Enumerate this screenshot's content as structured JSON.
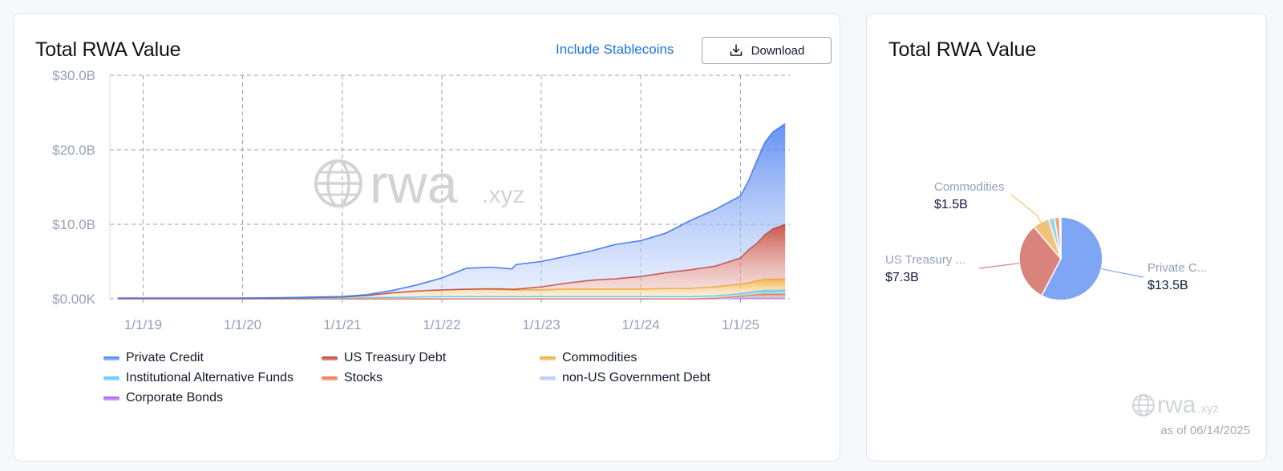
{
  "left_card": {
    "title": "Total RWA Value",
    "include_stablecoins": "Include Stablecoins",
    "download_label": "Download"
  },
  "right_card": {
    "title": "Total RWA Value",
    "as_of": "as of 06/14/2025",
    "logo_main": "rwa",
    "logo_suffix": ".xyz"
  },
  "watermark": {
    "main": "rwa",
    "suffix": ".xyz"
  },
  "colors": {
    "private_credit": "#4a7ef0",
    "us_treasury": "#c0392b",
    "commodities": "#f0a830",
    "institutional_alt": "#4fc3f7",
    "stocks": "#f06a3a",
    "non_us_gov": "#aec6f0",
    "corporate_bonds": "#a855f7",
    "grid": "#9aa0aa",
    "axis_text": "#94a0b8",
    "link": "#1a73e8"
  },
  "chart_data": [
    {
      "type": "area",
      "stacked": true,
      "title": "Total RWA Value",
      "x_ticks": [
        "1/1/19",
        "1/1/20",
        "1/1/21",
        "1/1/22",
        "1/1/23",
        "1/1/24",
        "1/1/25"
      ],
      "y_ticks": [
        "$0.00K",
        "$10.0B",
        "$20.0B",
        "$30.0B"
      ],
      "ylim": [
        0,
        30
      ],
      "y_unit": "B",
      "xlim": [
        "2018-09-01",
        "2025-07-01"
      ],
      "grid": true,
      "legend_position": "bottom",
      "x": [
        "2018-10-01",
        "2019-06-01",
        "2020-01-01",
        "2020-06-01",
        "2021-01-01",
        "2021-04-01",
        "2021-07-01",
        "2021-10-01",
        "2022-01-01",
        "2022-04-01",
        "2022-07-01",
        "2022-09-15",
        "2022-10-01",
        "2023-01-01",
        "2023-04-01",
        "2023-07-01",
        "2023-10-01",
        "2024-01-01",
        "2024-04-01",
        "2024-07-01",
        "2024-10-01",
        "2025-01-01",
        "2025-02-01",
        "2025-03-01",
        "2025-04-01",
        "2025-05-01",
        "2025-06-14"
      ],
      "series": [
        {
          "name": "Corporate Bonds",
          "color_key": "corporate_bonds",
          "values": [
            0,
            0,
            0,
            0,
            0,
            0,
            0,
            0,
            0,
            0,
            0,
            0,
            0,
            0,
            0,
            0,
            0,
            0,
            0,
            0,
            0,
            0.05,
            0.05,
            0.05,
            0.05,
            0.05,
            0.05
          ]
        },
        {
          "name": "non-US Government Debt",
          "color_key": "non_us_gov",
          "values": [
            0,
            0,
            0,
            0,
            0,
            0,
            0,
            0,
            0,
            0,
            0,
            0,
            0,
            0,
            0,
            0,
            0,
            0,
            0,
            0,
            0,
            0.1,
            0.1,
            0.12,
            0.12,
            0.12,
            0.12
          ]
        },
        {
          "name": "Stocks",
          "color_key": "stocks",
          "values": [
            0,
            0,
            0,
            0,
            0,
            0,
            0,
            0,
            0,
            0,
            0,
            0,
            0,
            0,
            0,
            0,
            0,
            0,
            0,
            0,
            0.1,
            0.2,
            0.3,
            0.4,
            0.45,
            0.45,
            0.45
          ]
        },
        {
          "name": "Institutional Alternative Funds",
          "color_key": "institutional_alt",
          "values": [
            0.05,
            0.05,
            0.05,
            0.05,
            0.1,
            0.15,
            0.2,
            0.25,
            0.3,
            0.3,
            0.3,
            0.3,
            0.3,
            0.3,
            0.3,
            0.3,
            0.3,
            0.3,
            0.3,
            0.3,
            0.3,
            0.35,
            0.4,
            0.45,
            0.5,
            0.5,
            0.55
          ]
        },
        {
          "name": "Commodities",
          "color_key": "commodities",
          "values": [
            0,
            0,
            0,
            0.05,
            0.15,
            0.3,
            0.6,
            0.8,
            0.9,
            1.0,
            1.0,
            0.9,
            0.9,
            0.9,
            1.0,
            1.0,
            1.0,
            1.0,
            1.1,
            1.1,
            1.2,
            1.3,
            1.3,
            1.4,
            1.5,
            1.5,
            1.5
          ]
        },
        {
          "name": "US Treasury Debt",
          "color_key": "us_treasury",
          "values": [
            0,
            0,
            0,
            0,
            0,
            0,
            0,
            0,
            0,
            0,
            0.05,
            0.1,
            0.1,
            0.4,
            0.8,
            1.2,
            1.4,
            1.7,
            2.1,
            2.5,
            2.8,
            3.5,
            4.5,
            5.0,
            6.0,
            6.8,
            7.3
          ]
        },
        {
          "name": "Private Credit",
          "color_key": "private_credit",
          "values": [
            0.05,
            0.05,
            0.05,
            0.05,
            0.05,
            0.1,
            0.3,
            0.8,
            1.6,
            2.8,
            2.9,
            2.7,
            3.3,
            3.4,
            3.6,
            3.9,
            4.6,
            4.8,
            5.3,
            6.6,
            7.6,
            8.3,
            9.3,
            11.0,
            12.4,
            13.0,
            13.5
          ]
        }
      ]
    },
    {
      "type": "pie",
      "title": "Total RWA Value",
      "slices": [
        {
          "name": "Private C...",
          "label": "Private Credit",
          "value": 13.5,
          "display": "$13.5B",
          "color": "#7fa6f5"
        },
        {
          "name": "US Treasury ...",
          "label": "US Treasury Debt",
          "value": 7.3,
          "display": "$7.3B",
          "color": "#d9837c"
        },
        {
          "name": "Commodities",
          "label": "Commodities",
          "value": 1.5,
          "display": "$1.5B",
          "color": "#f2c27a"
        },
        {
          "name": "",
          "label": "Institutional Alternative Funds",
          "value": 0.55,
          "display": "",
          "color": "#93d7f5"
        },
        {
          "name": "",
          "label": "Stocks",
          "value": 0.45,
          "display": "",
          "color": "#f3a07c"
        },
        {
          "name": "",
          "label": "non-US Government Debt",
          "value": 0.12,
          "display": "",
          "color": "#c9d8f3"
        }
      ]
    }
  ]
}
